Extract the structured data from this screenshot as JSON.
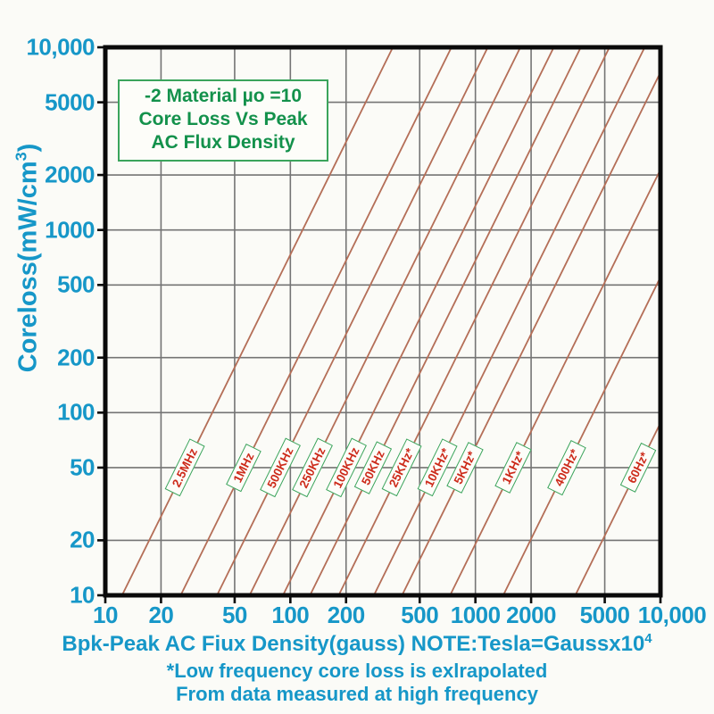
{
  "colors": {
    "teal": "#1697C8",
    "green_text": "#13914B",
    "green_border": "#3BA45C",
    "red_label_text": "#CD2B1B",
    "curve_line": "#B46E57",
    "gridline": "#747474",
    "frame": "#0A0A0A",
    "background": "#FBFBF7"
  },
  "title_box": {
    "lines": [
      "-2 Material µo =10",
      "Core Loss Vs Peak",
      "AC Flux Density"
    ]
  },
  "y_axis": {
    "title_prefix": "Coreloss(mW/cm",
    "title_sup": "3",
    "title_suffix": ")",
    "tick_labels": [
      "10,000",
      "5000",
      "2000",
      "1000",
      "500",
      "200",
      "100",
      "50",
      "20",
      "10"
    ],
    "tick_values": [
      10000,
      5000,
      2000,
      1000,
      500,
      200,
      100,
      50,
      20,
      10
    ]
  },
  "x_axis": {
    "tick_labels": [
      "10",
      "20",
      "50",
      "100",
      "200",
      "500",
      "1000",
      "2000",
      "5000",
      "10,000"
    ],
    "tick_values": [
      10,
      20,
      50,
      100,
      200,
      500,
      1000,
      2000,
      5000,
      10000
    ]
  },
  "caption": {
    "line1_main": "Bpk-Peak AC Fiux Density(gauss) NOTE:Tesla=Gaussx10",
    "line1_sup": "4",
    "line2": "*Low frequency core loss is exlrapolated",
    "line3": "From data measured at high frequency"
  },
  "chart_data": {
    "type": "line",
    "title": "-2 Material µo=10 Core Loss Vs Peak AC Flux Density",
    "xlabel": "Bpk-Peak AC Fiux Density(gauss)",
    "ylabel": "Coreloss(mW/cm3)",
    "x_scale": "log",
    "y_scale": "log",
    "xlim": [
      10,
      10000
    ],
    "ylim": [
      10,
      10000
    ],
    "grid_values": [
      20,
      50,
      100,
      200,
      500,
      1000,
      2000,
      5000
    ],
    "grid": true,
    "legend_position": "labels-on-lines",
    "loglog_slope": 2.05,
    "anchor_loss_mw_per_cm3": 50,
    "series": [
      {
        "label": "2.5MHz",
        "gauss_at_50mW": 27
      },
      {
        "label": "1MHz",
        "gauss_at_50mW": 56
      },
      {
        "label": "500KHz",
        "gauss_at_50mW": 88
      },
      {
        "label": "250KHz",
        "gauss_at_50mW": 132
      },
      {
        "label": "100KHz",
        "gauss_at_50mW": 200
      },
      {
        "label": "50KHz",
        "gauss_at_50mW": 280
      },
      {
        "label": "25KHz*",
        "gauss_at_50mW": 400
      },
      {
        "label": "10KHz*",
        "gauss_at_50mW": 620
      },
      {
        "label": "5KHz*",
        "gauss_at_50mW": 880
      },
      {
        "label": "1KHz*",
        "gauss_at_50mW": 1600
      },
      {
        "label": "400Hz*",
        "gauss_at_50mW": 3100
      },
      {
        "label": "60Hz*",
        "gauss_at_50mW": 7600
      }
    ]
  }
}
